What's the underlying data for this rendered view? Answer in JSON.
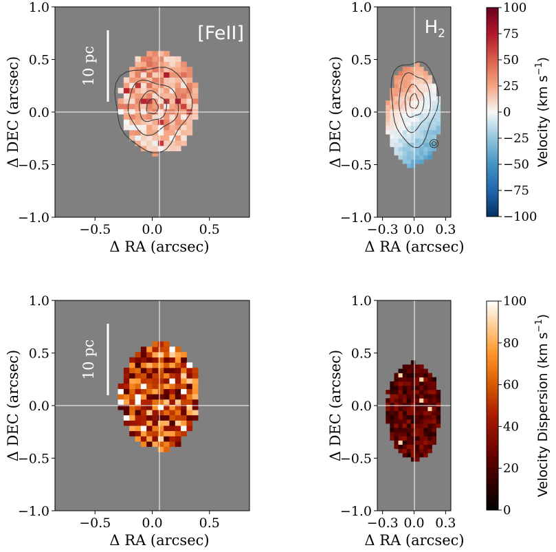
{
  "colors": {
    "background": "#808080",
    "crosshair": "#ffffff",
    "contour": "#3a3a3a",
    "scalebar": "#ffffff"
  },
  "colorbars": {
    "velocity": {
      "label": "Velocity (km s$^{-1}$)",
      "label_main": "Velocity (km s",
      "label_sup": "−1",
      "label_end": ")",
      "cmap": "RdBu_r",
      "ticks": [
        -100,
        -75,
        -50,
        -25,
        0,
        25,
        50,
        75,
        100
      ],
      "tick_labels": [
        "−100",
        "−75",
        "−50",
        "−25",
        "0",
        "25",
        "50",
        "75",
        "100"
      ],
      "range": [
        -100,
        100
      ]
    },
    "dispersion": {
      "label": "Velocity Dispersion (km s$^{-1}$)",
      "label_main": "Velocity Dispersion (km s",
      "label_sup": "−1",
      "label_end": ")",
      "cmap": "gist_heat",
      "ticks": [
        0,
        20,
        40,
        60,
        80,
        100
      ],
      "tick_labels": [
        "0",
        "20",
        "40",
        "60",
        "80",
        "100"
      ],
      "range": [
        0,
        100
      ]
    }
  },
  "chart_data": [
    {
      "type": "heatmap",
      "panel": "FeII velocity",
      "line_label": "[FeII]",
      "quantity": "velocity",
      "scalebar_label": "10 pc",
      "xlabel": "Δ RA (arcsec)",
      "ylabel": "Δ DEC (arcsec)",
      "xlim": [
        -0.85,
        0.85
      ],
      "ylim": [
        -1.0,
        1.0
      ],
      "xticks": [
        -0.5,
        0.0,
        0.5
      ],
      "xtick_labels": [
        "−0.5",
        "0.0",
        "0.5"
      ],
      "yticks": [
        -1.0,
        -0.5,
        0.0,
        0.5,
        1.0
      ],
      "ytick_labels": [
        "−1.0",
        "−0.5",
        "0.0",
        "0.5",
        "1.0"
      ],
      "extent": {
        "x": [
          -0.3,
          0.42
        ],
        "y": [
          -0.42,
          0.59
        ]
      },
      "pixel_size_arcsec": 0.05,
      "value_range": [
        -5,
        70
      ],
      "trend": "mostly redshifted 10–40 km/s, up to ~70 km/s at edges"
    },
    {
      "type": "heatmap",
      "panel": "H2 velocity",
      "line_label": "H",
      "line_label_sub": "2",
      "quantity": "velocity",
      "xlabel": "Δ RA (arcsec)",
      "ylabel": "Δ DEC (arcsec)",
      "xlim": [
        -0.35,
        0.35
      ],
      "ylim": [
        -1.0,
        1.0
      ],
      "xticks": [
        -0.3,
        0.0,
        0.3
      ],
      "xtick_labels": [
        "−0.3",
        "0.0",
        "0.3"
      ],
      "yticks": [
        -1.0,
        -0.5,
        0.0,
        0.5,
        1.0
      ],
      "ytick_labels": [
        "−1.0",
        "−0.5",
        "0.0",
        "0.5",
        "1.0"
      ],
      "extent": {
        "x": [
          -0.27,
          0.26
        ],
        "y": [
          -0.53,
          0.46
        ]
      },
      "pixel_size_arcsec": 0.04,
      "value_range": [
        -40,
        40
      ],
      "trend": "blueshifted in south-east, redshifted in north-west"
    },
    {
      "type": "heatmap",
      "panel": "FeII dispersion",
      "quantity": "velocity dispersion",
      "scalebar_label": "10 pc",
      "xlabel": "Δ RA (arcsec)",
      "ylabel": "Δ DEC (arcsec)",
      "xlim": [
        -0.85,
        0.85
      ],
      "ylim": [
        -1.0,
        1.0
      ],
      "xticks": [
        -0.5,
        0.0,
        0.5
      ],
      "xtick_labels": [
        "−0.5",
        "0.0",
        "0.5"
      ],
      "yticks": [
        -1.0,
        -0.5,
        0.0,
        0.5,
        1.0
      ],
      "ytick_labels": [
        "−1.0",
        "−0.5",
        "0.0",
        "0.5",
        "1.0"
      ],
      "extent": {
        "x": [
          -0.3,
          0.42
        ],
        "y": [
          -0.44,
          0.62
        ]
      },
      "pixel_size_arcsec": 0.05,
      "value_range": [
        0,
        100
      ]
    },
    {
      "type": "heatmap",
      "panel": "H2 dispersion",
      "quantity": "velocity dispersion",
      "xlabel": "Δ RA (arcsec)",
      "ylabel": "Δ DEC (arcsec)",
      "xlim": [
        -0.35,
        0.35
      ],
      "ylim": [
        -1.0,
        1.0
      ],
      "xticks": [
        -0.3,
        0.0,
        0.3
      ],
      "xtick_labels": [
        "−0.3",
        "0.0",
        "0.3"
      ],
      "yticks": [
        -1.0,
        -0.5,
        0.0,
        0.5,
        1.0
      ],
      "ytick_labels": [
        "−1.0",
        "−0.5",
        "0.0",
        "0.5",
        "1.0"
      ],
      "extent": {
        "x": [
          -0.27,
          0.26
        ],
        "y": [
          -0.53,
          0.44
        ]
      },
      "pixel_size_arcsec": 0.04,
      "value_range": [
        0,
        70
      ]
    }
  ]
}
